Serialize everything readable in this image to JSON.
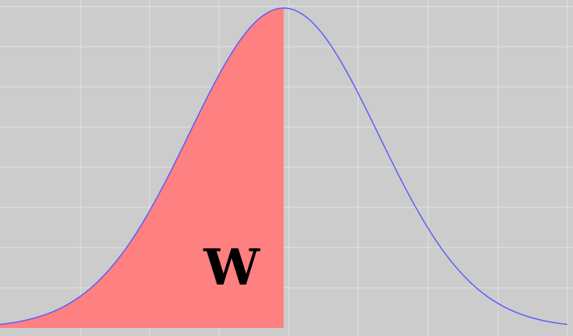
{
  "colors": {
    "background": "#cccccc",
    "grid": "#e2e2e2",
    "curve": "#5a5aff",
    "shade": "#ff8080",
    "text": "#000000"
  },
  "chart_data": {
    "type": "area",
    "title": "",
    "xlabel": "",
    "ylabel": "",
    "xlim": [
      -3,
      3
    ],
    "ylim": [
      0,
      0.4
    ],
    "grid": true,
    "legend": "none",
    "series": [
      {
        "kind": "standard-normal-density",
        "mean": 0,
        "sd": 1,
        "x": [
          -3,
          -2.5,
          -2,
          -1.5,
          -1,
          -0.5,
          0,
          0.5,
          1,
          1.5,
          2,
          2.5,
          3
        ],
        "y": [
          0.004,
          0.018,
          0.054,
          0.13,
          0.242,
          0.352,
          0.399,
          0.352,
          0.242,
          0.13,
          0.054,
          0.018,
          0.004
        ]
      }
    ],
    "shaded_region": {
      "from": -3,
      "to": 0
    },
    "annotations": [
      {
        "text": "W",
        "x": -0.55,
        "y": 0.075
      }
    ]
  }
}
